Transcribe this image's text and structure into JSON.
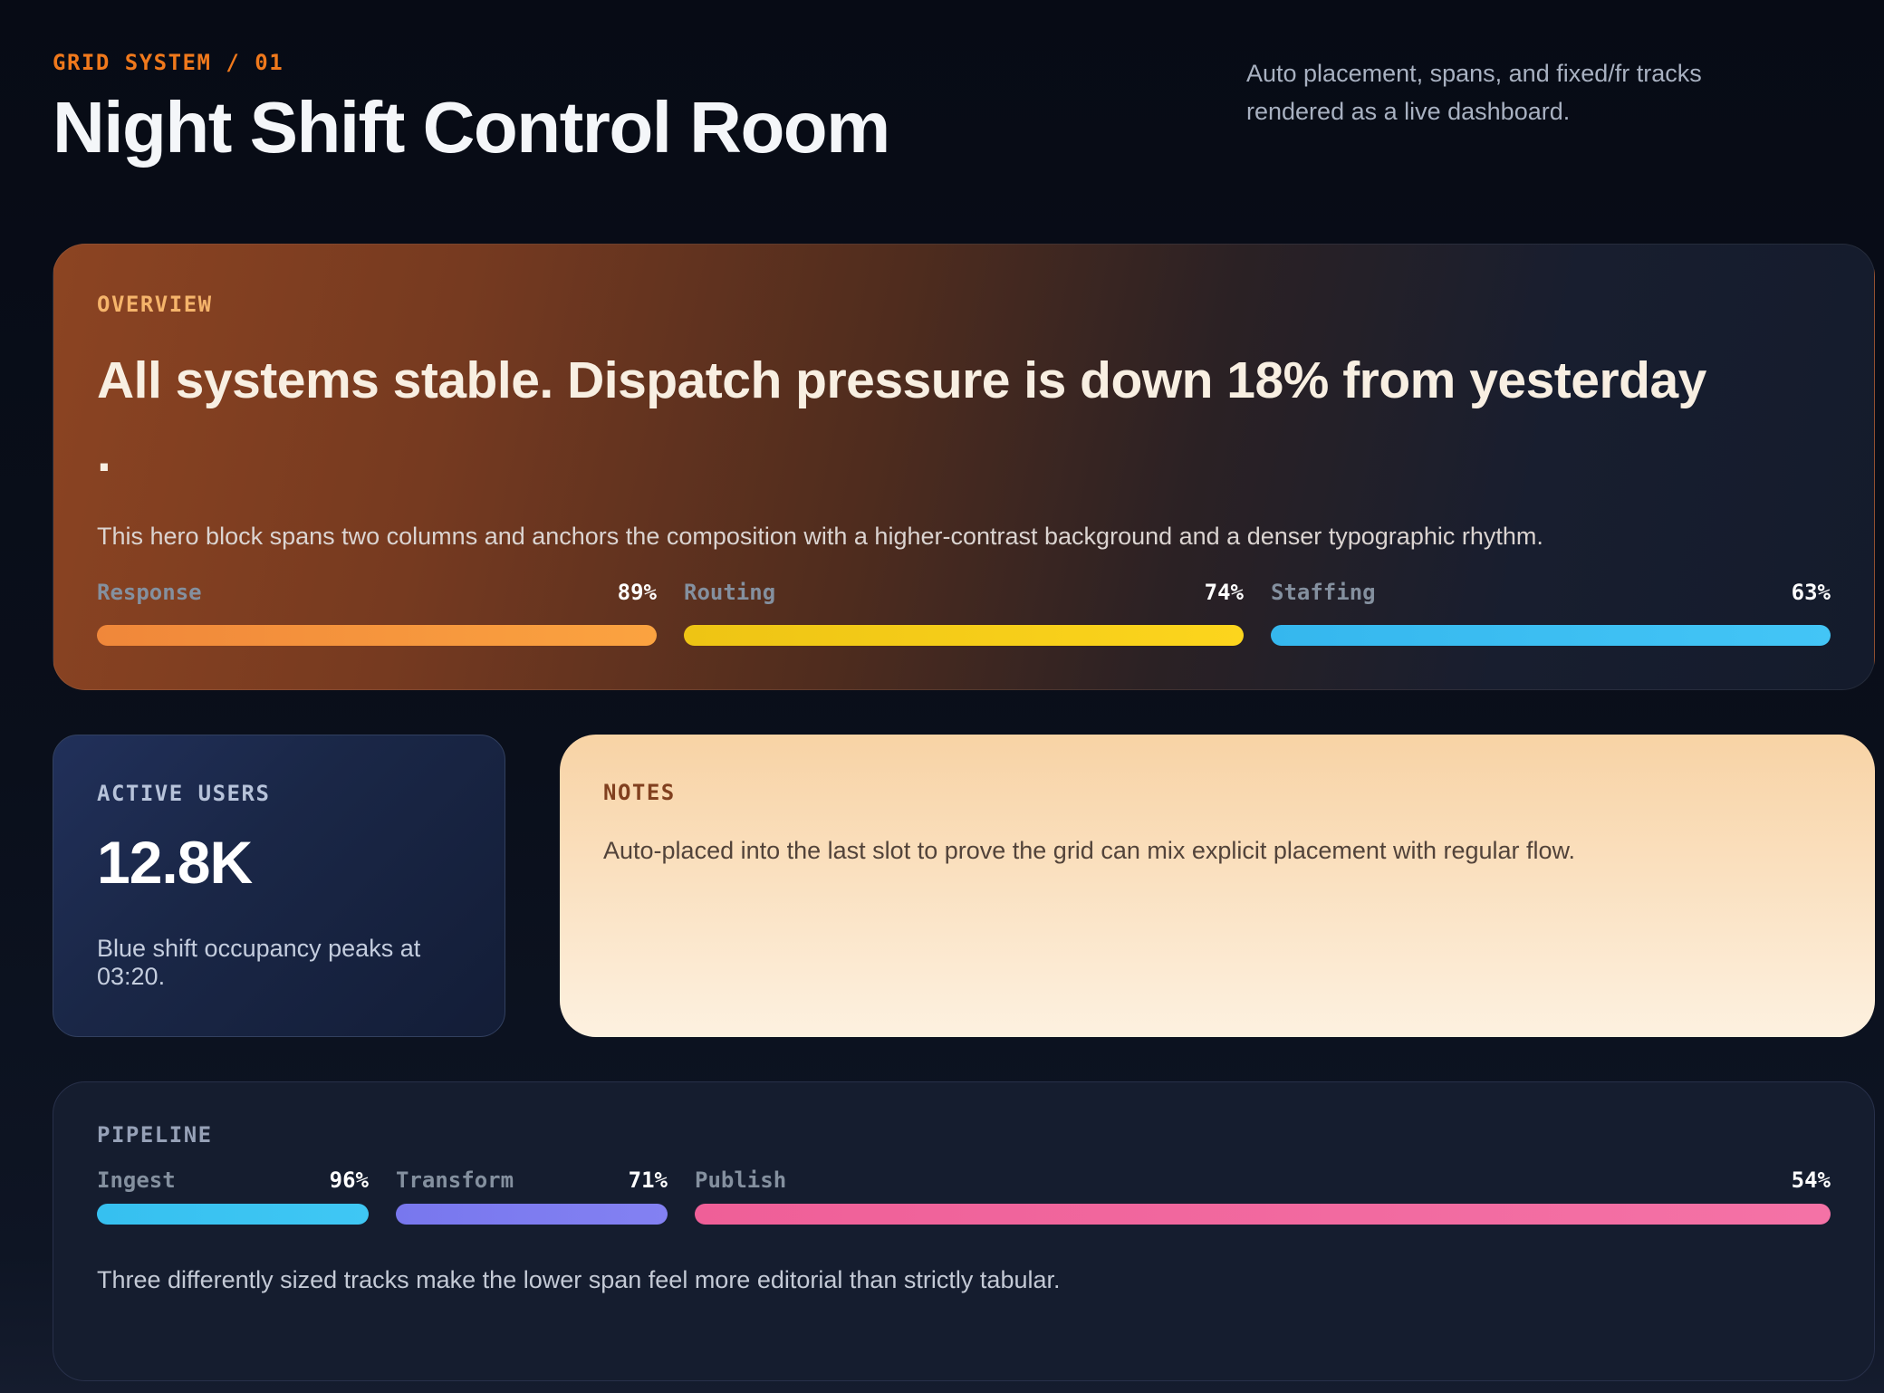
{
  "header": {
    "eyebrow": "GRID SYSTEM / 01",
    "title": "Night Shift Control Room",
    "tagline": "Auto placement, spans, and fixed/fr tracks rendered as a live dashboard."
  },
  "hero": {
    "label": "OVERVIEW",
    "headline": "All systems stable. Dispatch pressure is down 18% from yesterday",
    "headline_trailing_dot": ".",
    "body": "This hero block spans two columns and anchors the composition with a higher-contrast background and a denser typographic rhythm.",
    "meters": [
      {
        "name": "Response",
        "value": "89%",
        "color_start": "#f0873a",
        "color_end": "#fba340"
      },
      {
        "name": "Routing",
        "value": "74%",
        "color_start": "#eec414",
        "color_end": "#fcd51d"
      },
      {
        "name": "Staffing",
        "value": "63%",
        "color_start": "#35b7ee",
        "color_end": "#43c5f6"
      }
    ]
  },
  "active_users": {
    "label": "ACTIVE USERS",
    "value": "12.8K",
    "caption": "Blue shift occupancy peaks at 03:20."
  },
  "notes": {
    "label": "NOTES",
    "body": "Auto-placed into the last slot to prove the grid can mix explicit placement with regular flow."
  },
  "pipeline": {
    "label": "PIPELINE",
    "meters": [
      {
        "name": "Ingest",
        "value": "96%",
        "color_start": "#36c0f0",
        "color_end": "#3fc7f4"
      },
      {
        "name": "Transform",
        "value": "71%",
        "color_start": "#7877ee",
        "color_end": "#8381f2"
      },
      {
        "name": "Publish",
        "value": "54%",
        "color_start": "#ef5f98",
        "color_end": "#f472a6"
      }
    ],
    "caption": "Three differently sized tracks make the lower span feel more editorial than strictly tabular."
  }
}
